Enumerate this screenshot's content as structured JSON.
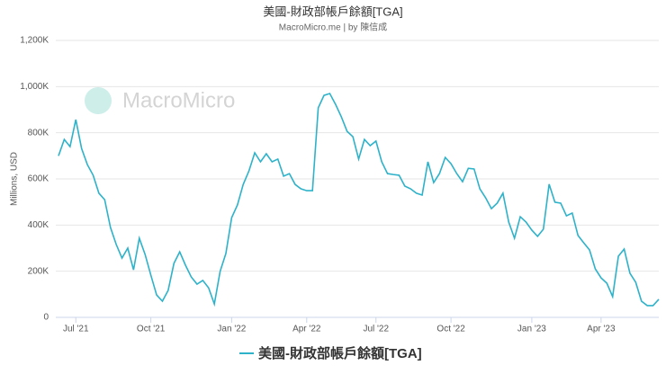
{
  "chart_data": {
    "type": "line",
    "title": "美國-財政部帳戶餘額[TGA]",
    "subtitle": "MacroMicro.me | by 陳信成",
    "watermark": "MacroMicro",
    "y_label": "Millions, USD",
    "categories": [
      null,
      null,
      null,
      "Jul '21",
      null,
      null,
      null,
      null,
      null,
      null,
      null,
      null,
      null,
      null,
      null,
      null,
      "Oct '21",
      null,
      null,
      null,
      null,
      null,
      null,
      null,
      null,
      null,
      null,
      null,
      null,
      null,
      "Jan '22",
      null,
      null,
      null,
      null,
      null,
      null,
      null,
      null,
      null,
      null,
      null,
      null,
      "Apr '22",
      null,
      null,
      null,
      null,
      null,
      null,
      null,
      null,
      null,
      null,
      null,
      "Jul '22",
      null,
      null,
      null,
      null,
      null,
      null,
      null,
      null,
      null,
      null,
      null,
      null,
      "Oct '22",
      null,
      null,
      null,
      null,
      null,
      null,
      null,
      null,
      null,
      null,
      null,
      null,
      null,
      "Jan '23",
      null,
      null,
      null,
      null,
      null,
      null,
      null,
      null,
      null,
      null,
      null,
      "Apr '23",
      null,
      null,
      null,
      null,
      null,
      null,
      null,
      null,
      null,
      null
    ],
    "series": [
      {
        "name": "美國-財政部帳戶餘額[TGA]",
        "color": "#2eb2c9",
        "values": [
          700,
          771,
          740,
          857,
          732,
          662,
          616,
          538,
          510,
          390,
          316,
          257,
          300,
          206,
          343,
          273,
          183,
          97,
          70,
          117,
          234,
          284,
          226,
          175,
          144,
          160,
          128,
          58,
          199,
          277,
          432,
          487,
          576,
          635,
          713,
          674,
          709,
          674,
          686,
          612,
          623,
          576,
          557,
          549,
          549,
          908,
          962,
          970,
          923,
          869,
          806,
          783,
          686,
          771,
          744,
          764,
          674,
          623,
          619,
          616,
          569,
          557,
          538,
          530,
          674,
          584,
          623,
          693,
          666,
          623,
          588,
          646,
          643,
          557,
          518,
          471,
          495,
          538,
          413,
          343,
          436,
          413,
          378,
          351,
          382,
          577,
          499,
          495,
          440,
          452,
          355,
          323,
          292,
          210,
          171,
          148,
          90,
          265,
          296,
          191,
          152,
          70,
          51,
          51,
          78
        ]
      }
    ],
    "ylim": [
      0,
      1200
    ],
    "yticks": [
      0,
      {
        "value": 200,
        "label": "200K"
      },
      {
        "value": 400,
        "label": "400K"
      },
      {
        "value": 600,
        "label": "600K"
      },
      {
        "value": 800,
        "label": "800K"
      },
      {
        "value": 1000,
        "label": "1,000K"
      },
      {
        "value": 1200,
        "label": "1,200K"
      }
    ],
    "grid": true
  }
}
